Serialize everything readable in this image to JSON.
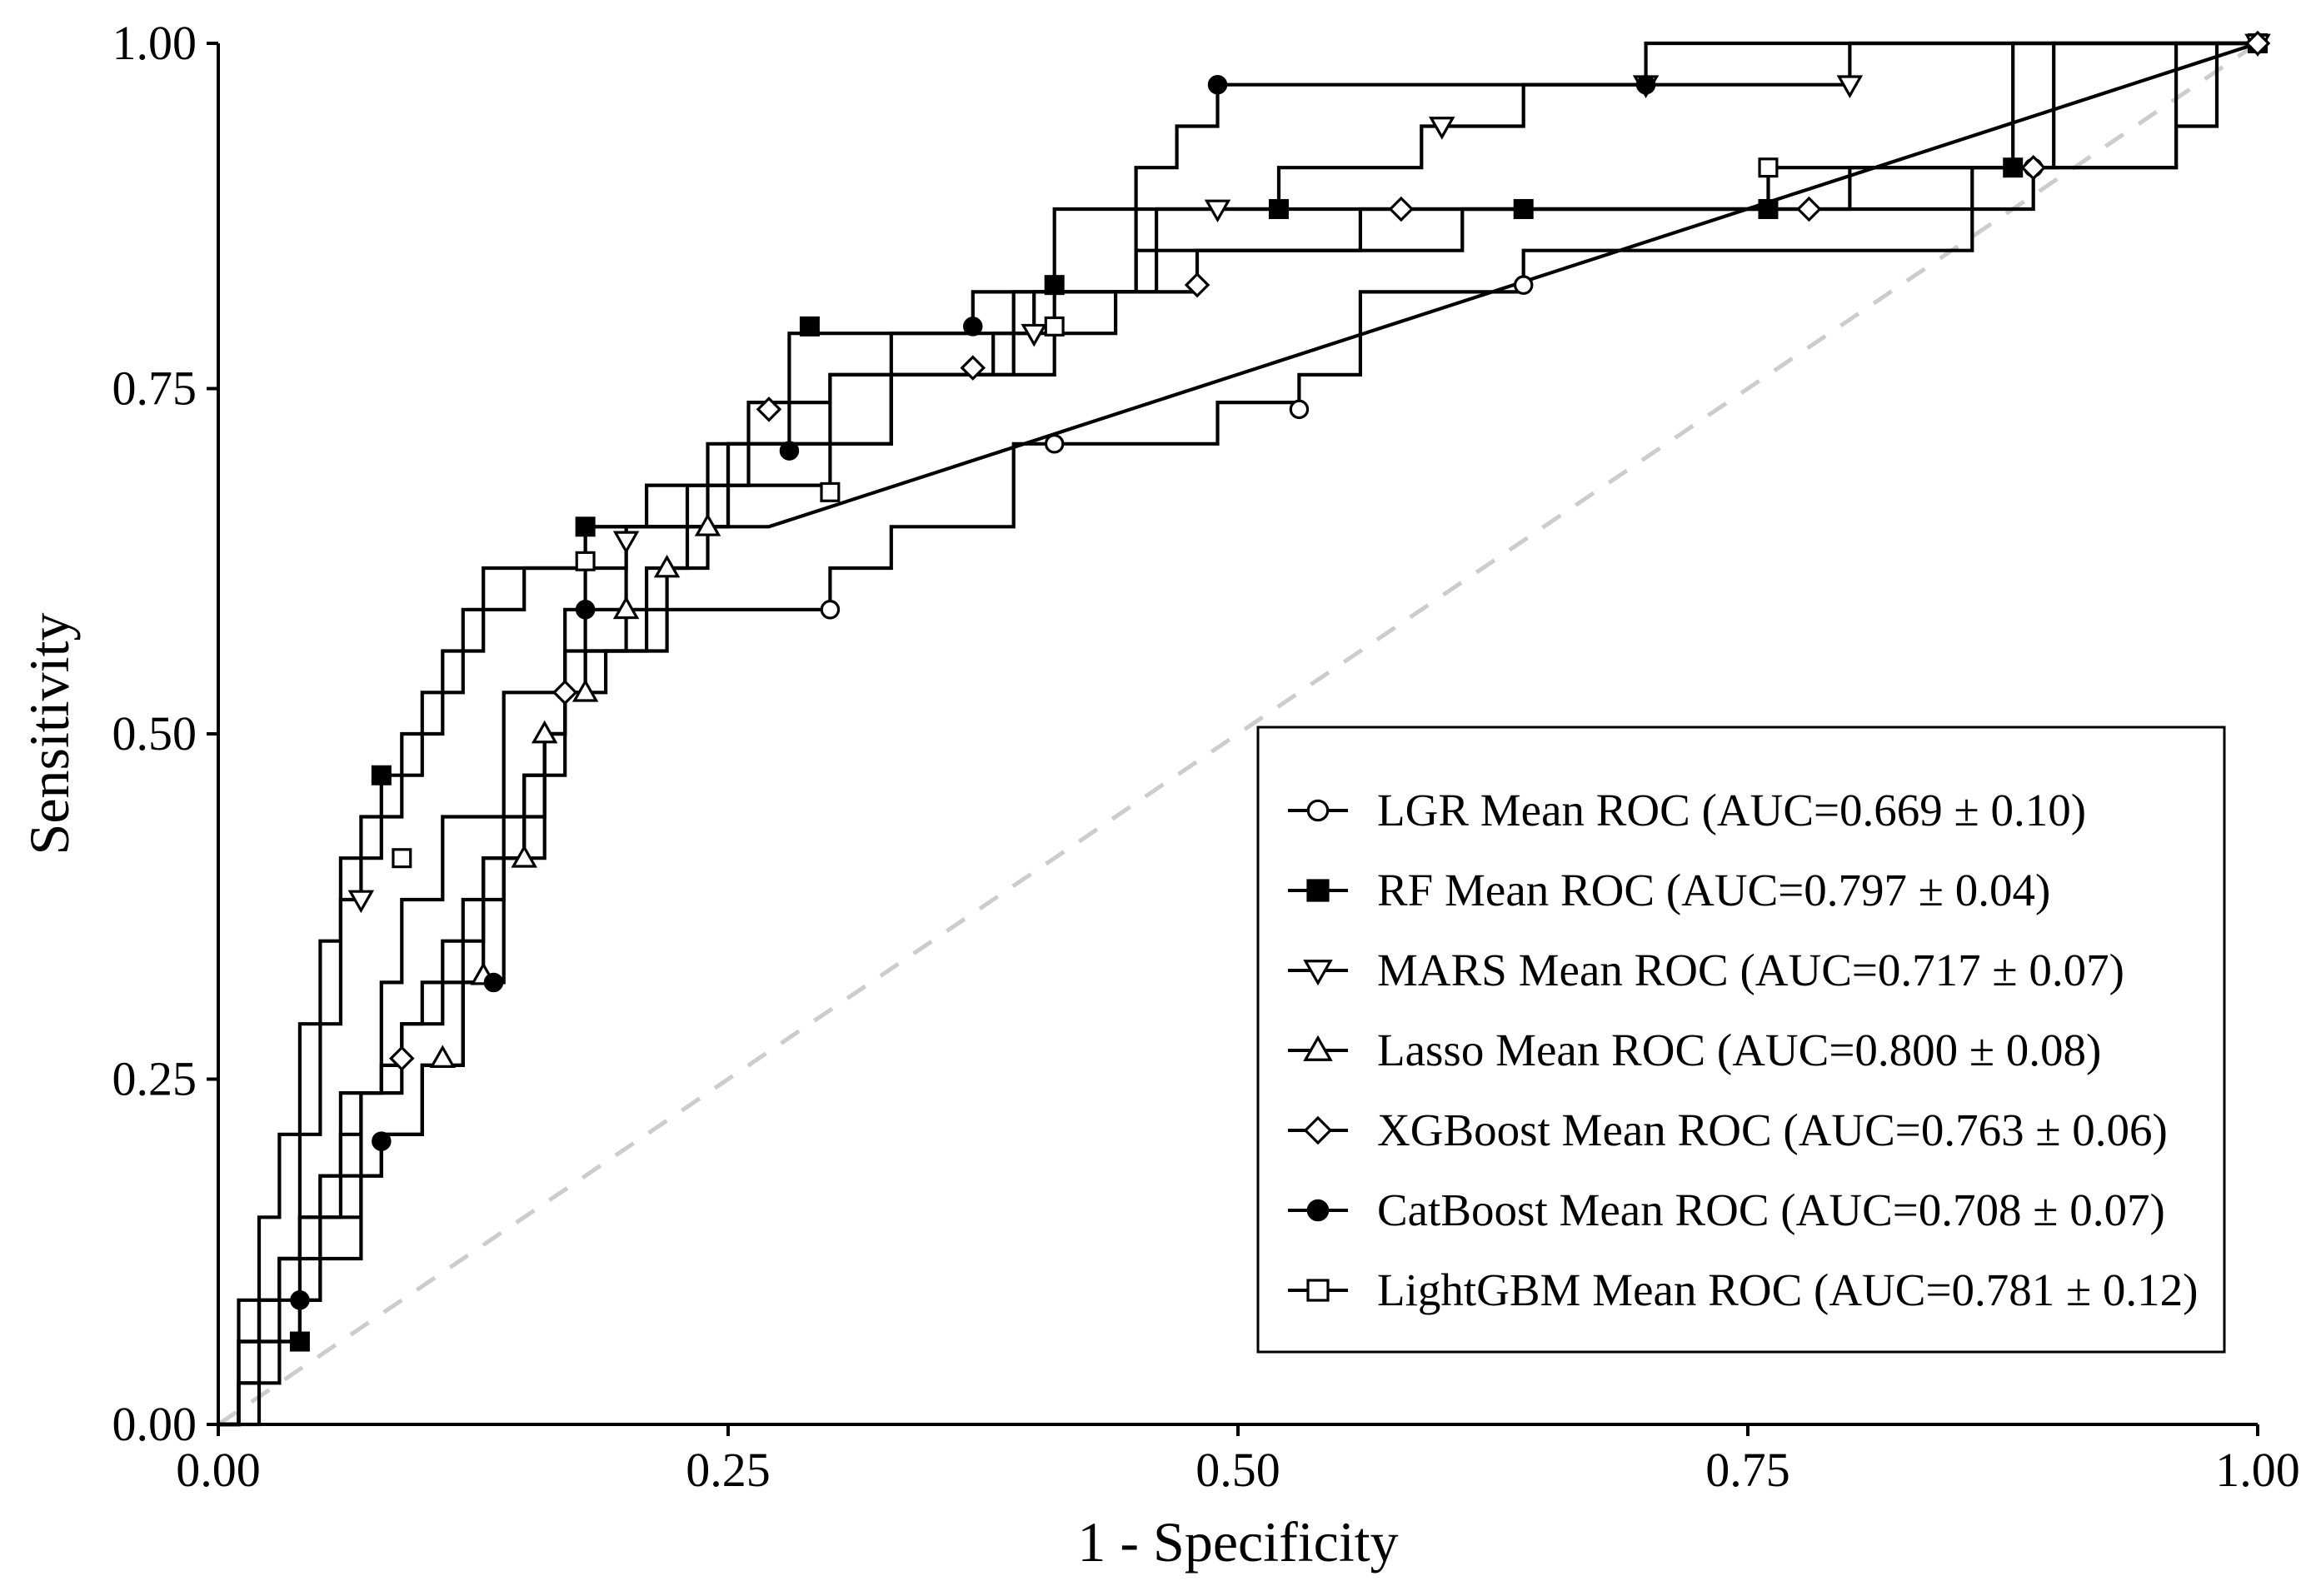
{
  "chart_data": {
    "type": "line",
    "title": "",
    "xlabel": "1 - Specificity",
    "ylabel": "Sensitivity",
    "xlim": [
      0,
      1
    ],
    "ylim": [
      0,
      1
    ],
    "xticks": [
      0,
      0.25,
      0.5,
      0.75,
      1
    ],
    "yticks": [
      0,
      0.25,
      0.5,
      0.75,
      1
    ],
    "xtick_labels": [
      "0.00",
      "0.25",
      "0.50",
      "0.75",
      "1.00"
    ],
    "ytick_labels": [
      "0.00",
      "0.25",
      "0.50",
      "0.75",
      "1.00"
    ],
    "grid": false,
    "legend_position": "bottom-right",
    "reference_line": {
      "name": "chance",
      "x": [
        0,
        1
      ],
      "y": [
        0,
        1
      ],
      "style": "dashed",
      "color": "#cccccc"
    },
    "series": [
      {
        "name": "LGR Mean ROC",
        "legend_label": "LGR Mean ROC (AUC=0.669 ± 0.10)",
        "marker": "circle-open",
        "x": [
          0,
          0.01,
          0.01,
          0.02,
          0.02,
          0.03,
          0.03,
          0.04,
          0.04,
          0.05,
          0.05,
          0.06,
          0.06,
          0.07,
          0.07,
          0.08,
          0.08,
          0.09,
          0.09,
          0.1,
          0.1,
          0.12,
          0.12,
          0.14,
          0.14,
          0.16,
          0.16,
          0.17,
          0.17,
          0.18,
          0.18,
          0.19,
          0.19,
          0.22,
          0.22,
          0.24,
          0.24,
          0.3,
          0.3,
          0.33,
          0.33,
          0.39,
          0.39,
          0.45,
          0.45,
          0.49,
          0.49,
          0.53,
          0.53,
          0.56,
          0.56,
          0.64,
          0.64,
          0.86,
          0.86,
          0.9,
          0.9,
          1.0
        ],
        "y": [
          0,
          0,
          0.06,
          0.06,
          0.09,
          0.09,
          0.12,
          0.12,
          0.15,
          0.15,
          0.18,
          0.18,
          0.21,
          0.21,
          0.24,
          0.24,
          0.26,
          0.26,
          0.29,
          0.29,
          0.32,
          0.32,
          0.38,
          0.38,
          0.44,
          0.44,
          0.5,
          0.5,
          0.53,
          0.53,
          0.56,
          0.56,
          0.56,
          0.56,
          0.59,
          0.59,
          0.59,
          0.59,
          0.62,
          0.62,
          0.65,
          0.65,
          0.71,
          0.71,
          0.71,
          0.71,
          0.74,
          0.74,
          0.76,
          0.76,
          0.82,
          0.82,
          0.85,
          0.85,
          0.91,
          0.91,
          1.0,
          1.0
        ],
        "markers_x": [
          0.3,
          0.41,
          0.53,
          0.64,
          0.89,
          1.0
        ],
        "markers_y": [
          0.59,
          0.71,
          0.735,
          0.825,
          0.91,
          1.0
        ]
      },
      {
        "name": "RF Mean ROC",
        "legend_label": "RF Mean ROC (AUC=0.797 ± 0.04)",
        "marker": "square-filled",
        "x": [
          0,
          0.01,
          0.01,
          0.02,
          0.02,
          0.03,
          0.03,
          0.04,
          0.04,
          0.05,
          0.05,
          0.06,
          0.06,
          0.07,
          0.07,
          0.08,
          0.08,
          0.1,
          0.1,
          0.12,
          0.12,
          0.15,
          0.15,
          0.18,
          0.18,
          0.24,
          0.24,
          0.33,
          0.33,
          0.4,
          0.4,
          0.46,
          0.46,
          0.76,
          0.76,
          0.88,
          0.88,
          1.0
        ],
        "y": [
          0,
          0,
          0.06,
          0.06,
          0.09,
          0.09,
          0.12,
          0.12,
          0.21,
          0.21,
          0.29,
          0.29,
          0.38,
          0.38,
          0.44,
          0.44,
          0.47,
          0.47,
          0.53,
          0.53,
          0.59,
          0.59,
          0.62,
          0.62,
          0.65,
          0.65,
          0.71,
          0.71,
          0.79,
          0.79,
          0.82,
          0.82,
          0.88,
          0.88,
          0.91,
          0.91,
          1.0,
          1.0
        ],
        "markers_x": [
          0.04,
          0.08,
          0.18,
          0.29,
          0.41,
          0.52,
          0.64,
          0.76,
          0.88,
          1.0
        ],
        "markers_y": [
          0.06,
          0.47,
          0.65,
          0.795,
          0.825,
          0.88,
          0.88,
          0.88,
          0.91,
          1.0
        ]
      },
      {
        "name": "MARS Mean ROC",
        "legend_label": "MARS Mean ROC (AUC=0.717 ± 0.07)",
        "marker": "triangle-down-open",
        "x": [
          0,
          0.02,
          0.02,
          0.04,
          0.04,
          0.06,
          0.06,
          0.08,
          0.08,
          0.09,
          0.09,
          0.11,
          0.11,
          0.14,
          0.14,
          0.17,
          0.17,
          0.2,
          0.2,
          0.25,
          0.25,
          0.33,
          0.33,
          0.39,
          0.39,
          0.45,
          0.45,
          0.52,
          0.52,
          0.59,
          0.59,
          0.64,
          0.64,
          0.68,
          0.68,
          0.8,
          0.8,
          0.99,
          1.0
        ],
        "y": [
          0,
          0,
          0.09,
          0.09,
          0.15,
          0.15,
          0.24,
          0.24,
          0.32,
          0.32,
          0.38,
          0.38,
          0.44,
          0.44,
          0.53,
          0.53,
          0.59,
          0.59,
          0.65,
          0.65,
          0.71,
          0.71,
          0.76,
          0.76,
          0.82,
          0.82,
          0.88,
          0.88,
          0.91,
          0.91,
          0.94,
          0.94,
          0.97,
          0.97,
          0.97,
          0.97,
          1.0,
          1.0,
          1.0
        ],
        "markers_x": [
          0.07,
          0.2,
          0.4,
          0.49,
          0.6,
          0.7,
          0.8,
          1.0
        ],
        "markers_y": [
          0.38,
          0.64,
          0.79,
          0.88,
          0.94,
          0.97,
          0.97,
          1.0
        ]
      },
      {
        "name": "Lasso Mean ROC",
        "legend_label": "Lasso Mean ROC (AUC=0.800 ± 0.08)",
        "marker": "triangle-up-open",
        "x": [
          0,
          0.01,
          0.01,
          0.02,
          0.02,
          0.04,
          0.04,
          0.05,
          0.05,
          0.07,
          0.07,
          0.08,
          0.08,
          0.1,
          0.1,
          0.12,
          0.12,
          0.13,
          0.13,
          0.15,
          0.15,
          0.16,
          0.16,
          0.17,
          0.17,
          0.18,
          0.18,
          0.2,
          0.2,
          0.22,
          0.22,
          0.24,
          0.24,
          0.27,
          0.27,
          1.0
        ],
        "y": [
          0,
          0,
          0.03,
          0.03,
          0.06,
          0.06,
          0.09,
          0.09,
          0.15,
          0.15,
          0.18,
          0.18,
          0.21,
          0.21,
          0.26,
          0.26,
          0.32,
          0.32,
          0.41,
          0.41,
          0.47,
          0.47,
          0.5,
          0.5,
          0.53,
          0.53,
          0.56,
          0.56,
          0.59,
          0.59,
          0.62,
          0.62,
          0.65,
          0.65,
          0.65,
          1.0
        ],
        "markers_x": [
          0.11,
          0.13,
          0.15,
          0.16,
          0.18,
          0.2,
          0.22,
          0.24
        ],
        "markers_y": [
          0.265,
          0.325,
          0.41,
          0.5,
          0.53,
          0.59,
          0.62,
          0.65
        ]
      },
      {
        "name": "XGBoost Mean ROC",
        "legend_label": "XGBoost Mean ROC (AUC=0.763 ± 0.06)",
        "marker": "diamond-open",
        "x": [
          0,
          0.01,
          0.01,
          0.03,
          0.03,
          0.05,
          0.05,
          0.07,
          0.07,
          0.09,
          0.09,
          0.11,
          0.11,
          0.13,
          0.13,
          0.15,
          0.15,
          0.17,
          0.17,
          0.19,
          0.19,
          0.21,
          0.21,
          0.23,
          0.23,
          0.26,
          0.26,
          0.3,
          0.3,
          0.38,
          0.38,
          0.44,
          0.44,
          0.48,
          0.48,
          0.56,
          0.56,
          0.73,
          0.73,
          0.89,
          0.89,
          0.96,
          0.96,
          1.0
        ],
        "y": [
          0,
          0,
          0.06,
          0.06,
          0.12,
          0.12,
          0.18,
          0.18,
          0.24,
          0.24,
          0.29,
          0.29,
          0.35,
          0.35,
          0.41,
          0.41,
          0.47,
          0.47,
          0.53,
          0.53,
          0.56,
          0.56,
          0.62,
          0.62,
          0.68,
          0.68,
          0.74,
          0.74,
          0.76,
          0.76,
          0.79,
          0.79,
          0.82,
          0.82,
          0.85,
          0.85,
          0.88,
          0.88,
          0.88,
          0.88,
          0.91,
          0.91,
          1.0,
          1.0
        ],
        "markers_x": [
          0.09,
          0.17,
          0.27,
          0.37,
          0.48,
          0.58,
          0.78,
          0.89,
          1.0
        ],
        "markers_y": [
          0.265,
          0.53,
          0.735,
          0.765,
          0.825,
          0.88,
          0.88,
          0.91,
          1.0
        ]
      },
      {
        "name": "CatBoost Mean ROC",
        "legend_label": "CatBoost Mean ROC (AUC=0.708 ± 0.07)",
        "marker": "circle-filled",
        "x": [
          0,
          0.01,
          0.01,
          0.03,
          0.03,
          0.04,
          0.04,
          0.05,
          0.05,
          0.07,
          0.07,
          0.08,
          0.08,
          0.1,
          0.1,
          0.12,
          0.12,
          0.14,
          0.14,
          0.16,
          0.16,
          0.17,
          0.17,
          0.18,
          0.18,
          0.2,
          0.2,
          0.25,
          0.25,
          0.28,
          0.28,
          0.37,
          0.37,
          0.41,
          0.41,
          0.45,
          0.45,
          0.47,
          0.47,
          0.49,
          0.49,
          0.7,
          0.7,
          1.0
        ],
        "y": [
          0,
          0,
          0.03,
          0.03,
          0.06,
          0.06,
          0.09,
          0.09,
          0.12,
          0.12,
          0.18,
          0.18,
          0.21,
          0.21,
          0.26,
          0.26,
          0.32,
          0.32,
          0.41,
          0.41,
          0.5,
          0.5,
          0.56,
          0.56,
          0.62,
          0.62,
          0.65,
          0.65,
          0.71,
          0.71,
          0.79,
          0.79,
          0.82,
          0.82,
          0.88,
          0.88,
          0.91,
          0.91,
          0.94,
          0.94,
          0.97,
          0.97,
          1.0,
          1.0
        ],
        "markers_x": [
          0.04,
          0.08,
          0.135,
          0.18,
          0.28,
          0.37,
          0.41,
          0.49,
          0.7
        ],
        "markers_y": [
          0.09,
          0.205,
          0.32,
          0.59,
          0.705,
          0.795,
          0.825,
          0.97,
          0.97
        ]
      },
      {
        "name": "LightGBM Mean ROC",
        "legend_label": "LightGBM Mean ROC (AUC=0.781 ± 0.12)",
        "marker": "square-open",
        "x": [
          0,
          0.01,
          0.01,
          0.02,
          0.02,
          0.03,
          0.03,
          0.04,
          0.04,
          0.05,
          0.05,
          0.06,
          0.06,
          0.08,
          0.08,
          0.09,
          0.09,
          0.11,
          0.11,
          0.13,
          0.13,
          0.18,
          0.18,
          0.21,
          0.21,
          0.3,
          0.3,
          0.41,
          0.41,
          0.45,
          0.45,
          0.61,
          0.61,
          0.8,
          0.8,
          0.96,
          0.96,
          0.98,
          0.98,
          1.0
        ],
        "y": [
          0,
          0,
          0.09,
          0.09,
          0.15,
          0.15,
          0.21,
          0.21,
          0.29,
          0.29,
          0.35,
          0.35,
          0.41,
          0.41,
          0.44,
          0.44,
          0.5,
          0.5,
          0.56,
          0.56,
          0.62,
          0.62,
          0.65,
          0.65,
          0.68,
          0.68,
          0.76,
          0.76,
          0.82,
          0.82,
          0.85,
          0.85,
          0.88,
          0.88,
          0.91,
          0.91,
          0.94,
          0.94,
          1.0,
          1.0
        ],
        "markers_x": [
          0.09,
          0.18,
          0.3,
          0.41,
          0.76
        ],
        "markers_y": [
          0.41,
          0.625,
          0.675,
          0.795,
          0.91
        ]
      }
    ]
  }
}
